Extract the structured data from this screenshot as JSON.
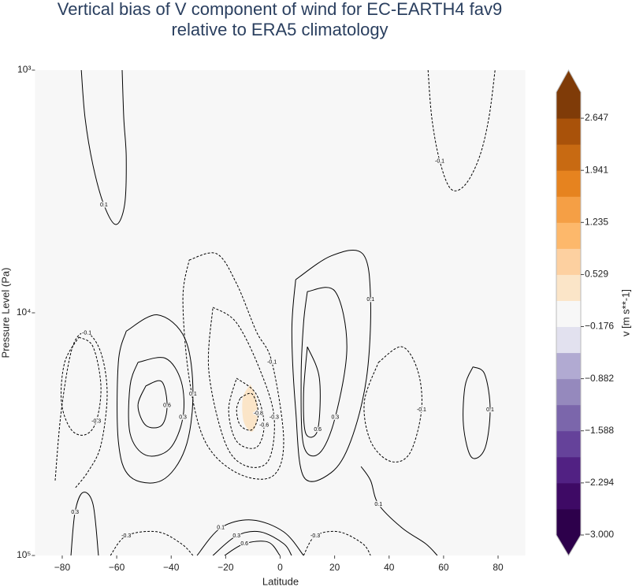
{
  "chart_data": {
    "type": "contour",
    "title": [
      "Vertical bias of V component of wind for EC-EARTH4 fav9",
      "relative to ERA5 climatology"
    ],
    "x_label": "Latitude",
    "y_label": "Pressure Level (Pa)",
    "xlim": [
      -90,
      90
    ],
    "xticks": [
      {
        "value": -80,
        "label": "−80"
      },
      {
        "value": -60,
        "label": "−60"
      },
      {
        "value": -40,
        "label": "−40"
      },
      {
        "value": -20,
        "label": "−20"
      },
      0,
      20,
      40,
      60,
      80
    ],
    "ylim": [
      100000,
      1000
    ],
    "log_y": true,
    "yticks": [
      {
        "value": 1000,
        "label": "10³"
      },
      {
        "value": 10000,
        "label": "10⁴"
      },
      {
        "value": 100000,
        "label": "10⁵"
      }
    ],
    "colorbar": {
      "label": "v [m s**-1]",
      "lim": [
        -3,
        3
      ],
      "extend": "both",
      "colors": [
        "#2d004b",
        "#3e0a65",
        "#512183",
        "#65429a",
        "#7b66ab",
        "#9589bd",
        "#b1aad2",
        "#e2e1ef",
        "#f7f7f7",
        "#fbe5c8",
        "#fdd0a0",
        "#fdb86b",
        "#f59f45",
        "#e6831f",
        "#c86a12",
        "#a9520a",
        "#7f3b08"
      ],
      "ticks": [
        {
          "value": -3,
          "label": "−3.000"
        },
        {
          "value": -2.294,
          "label": "−2.294"
        },
        {
          "value": -1.588,
          "label": "−1.588"
        },
        {
          "value": -0.882,
          "label": "−0.882"
        },
        {
          "value": -0.176,
          "label": "−0.176"
        },
        {
          "value": 0.529,
          "label": "0.529"
        },
        {
          "value": 1.235,
          "label": "1.235"
        },
        {
          "value": 1.941,
          "label": "1.941"
        },
        {
          "value": 2.647,
          "label": "2.647"
        }
      ]
    },
    "filled": [
      {
        "value": 0.3,
        "x": [
          -10.9,
          -8.8,
          -8.3,
          -10.3,
          -13.4,
          -13.7,
          -10.9
        ],
        "y": [
          19700,
          22400,
          27000,
          30900,
          28000,
          22400,
          19700
        ]
      }
    ],
    "contours": [
      {
        "level": 0.1,
        "x": [
          -73.0,
          -71.6,
          -68.7,
          -64.7,
          -60.3,
          -57.1,
          -56.5,
          -57.4,
          -58.0
        ],
        "y": [
          1000,
          1580,
          2470,
          3590,
          4330,
          3590,
          2290,
          1580,
          1000
        ]
      },
      {
        "level": -0.1,
        "x": [
          54.3,
          55.7,
          58.6,
          62.7,
          67.9,
          73.1,
          76.6,
          78.9
        ],
        "y": [
          1000,
          1580,
          2370,
          3090,
          2970,
          2290,
          1580,
          1000
        ]
      },
      {
        "level": -0.1,
        "x": [
          -82.6,
          -80.3,
          -76.2,
          -71,
          -65.8,
          -63.5,
          -65.8,
          -70.4,
          -75.4
        ],
        "y": [
          49100,
          25100,
          13800,
          12100,
          14600,
          21600,
          35100,
          44900,
          53000
        ]
      },
      {
        "level": -0.3,
        "x": [
          -73.9,
          -68.7,
          -65.8,
          -67.5,
          -71.6,
          -76.8,
          -80.3,
          -79.1,
          -73.9
        ],
        "y": [
          12600,
          13800,
          20000,
          28000,
          31800,
          30200,
          23300,
          16000,
          12600
        ]
      },
      {
        "level": 0.1,
        "x": [
          -56.5,
          -45,
          -34.9,
          -32,
          -34.9,
          -43.5,
          -55.1,
          -59.4,
          -59.4,
          -56.5
        ],
        "y": [
          11900,
          10200,
          12800,
          21600,
          36400,
          49100,
          47300,
          33800,
          16000,
          11900
        ]
      },
      {
        "level": 0.3,
        "x": [
          -52.2,
          -42.1,
          -36.3,
          -35.7,
          -40.6,
          -49.3,
          -55.1,
          -55.1,
          -52.2
        ],
        "y": [
          16000,
          15400,
          19200,
          27000,
          36400,
          38600,
          31400,
          20000,
          16000
        ]
      },
      {
        "level": 0.6,
        "x": [
          -49.3,
          -43.5,
          -41.5,
          -43.5,
          -49.3,
          -52.2,
          -49.3
        ],
        "y": [
          20000,
          19200,
          24100,
          29100,
          29100,
          24100,
          20000
        ]
      },
      {
        "level": -0.1,
        "x": [
          -33.4,
          -23.3,
          -16,
          -8.8,
          -3.0,
          1.3,
          -3.0,
          -16,
          -27.6,
          -33.4,
          -35.7,
          -33.4
        ],
        "y": [
          6060,
          5710,
          7580,
          11900,
          16000,
          33800,
          47300,
          45600,
          33800,
          18600,
          8810,
          6060
        ]
      },
      {
        "level": -0.3,
        "x": [
          -24.7,
          -16,
          -7.3,
          -2.2,
          -4.4,
          -13.1,
          -20.4,
          -26.2,
          -24.7
        ],
        "y": [
          9490,
          11000,
          17300,
          27000,
          40800,
          42500,
          33800,
          17300,
          9490
        ]
      },
      {
        "level": -0.6,
        "x": [
          -16,
          -8.8,
          -5.9,
          -8.8,
          -16,
          -18.9,
          -16
        ],
        "y": [
          18600,
          21600,
          29100,
          35900,
          33800,
          25100,
          18600
        ]
      },
      {
        "level": -0.8,
        "x": [
          -14.6,
          -10.3,
          -8,
          -10.3,
          -14.6,
          -16,
          -14.6
        ],
        "y": [
          22400,
          21600,
          26000,
          30300,
          29100,
          25100,
          22400
        ]
      },
      {
        "level": 0.1,
        "x": [
          5.7,
          18.7,
          30.3,
          33.2,
          31.7,
          25.9,
          18.7,
          8.6,
          5.7,
          4.3,
          5.7
        ],
        "y": [
          7300,
          5830,
          5710,
          8810,
          18600,
          33800,
          45600,
          47300,
          25100,
          11900,
          7300
        ]
      },
      {
        "level": 0.3,
        "x": [
          10,
          20.2,
          24.5,
          20.2,
          14.4,
          8.6,
          7.7,
          8.6,
          10
        ],
        "y": [
          8170,
          8170,
          13800,
          27000,
          37900,
          35100,
          18600,
          11000,
          8170
        ]
      },
      {
        "level": 0.6,
        "x": [
          10,
          14.4,
          13.8,
          9.4,
          8.6,
          10
        ],
        "y": [
          13800,
          18600,
          30300,
          31400,
          21600,
          13800
        ]
      },
      {
        "level": -0.1,
        "x": [
          36.1,
          44.7,
          50.5,
          51.9,
          47.6,
          40.4,
          33.2,
          30.9,
          36.1
        ],
        "y": [
          16000,
          13800,
          17300,
          25100,
          37900,
          40900,
          33800,
          23300,
          16000
        ]
      },
      {
        "level": 0.1,
        "x": [
          70.8,
          75.1,
          77.1,
          75.1,
          70.2,
          67.3,
          67.9,
          70.8
        ],
        "y": [
          16700,
          17900,
          25100,
          36400,
          39300,
          29100,
          20000,
          16700
        ]
      },
      {
        "level": 0.1,
        "x": [
          -30.5,
          -21.8,
          -10.3,
          1.3,
          8.6
        ],
        "y": [
          100000,
          76900,
          71400,
          79900,
          100000
        ]
      },
      {
        "level": 0.3,
        "x": [
          -24.7,
          -16,
          -7.3,
          1.3,
          4.2
        ],
        "y": [
          100000,
          83000,
          79900,
          89400,
          100000
        ]
      },
      {
        "level": 0.6,
        "x": [
          -20.4,
          -13.1,
          -4.4,
          -0.1
        ],
        "y": [
          100000,
          89400,
          88100,
          100000
        ]
      },
      {
        "level": 0.3,
        "x": [
          -76.8,
          -75.3,
          -72.4,
          -68.7,
          -66.7
        ],
        "y": [
          100000,
          66300,
          55000,
          61500,
          100000
        ]
      },
      {
        "level": -0.3,
        "x": [
          -62.3,
          -56.5,
          -45,
          -36.3,
          -32
        ],
        "y": [
          100000,
          83000,
          79900,
          89400,
          100000
        ]
      },
      {
        "level": -0.3,
        "x": [
          8.6,
          12.9,
          21.6,
          30.3,
          33.2
        ],
        "y": [
          100000,
          83000,
          79900,
          89400,
          100000
        ]
      },
      {
        "level": 0.1,
        "x": [
          29.7,
          33.2,
          36.1,
          44.7,
          53.4,
          57.7
        ],
        "y": [
          43000,
          49100,
          61500,
          76900,
          89400,
          100000
        ]
      }
    ]
  }
}
